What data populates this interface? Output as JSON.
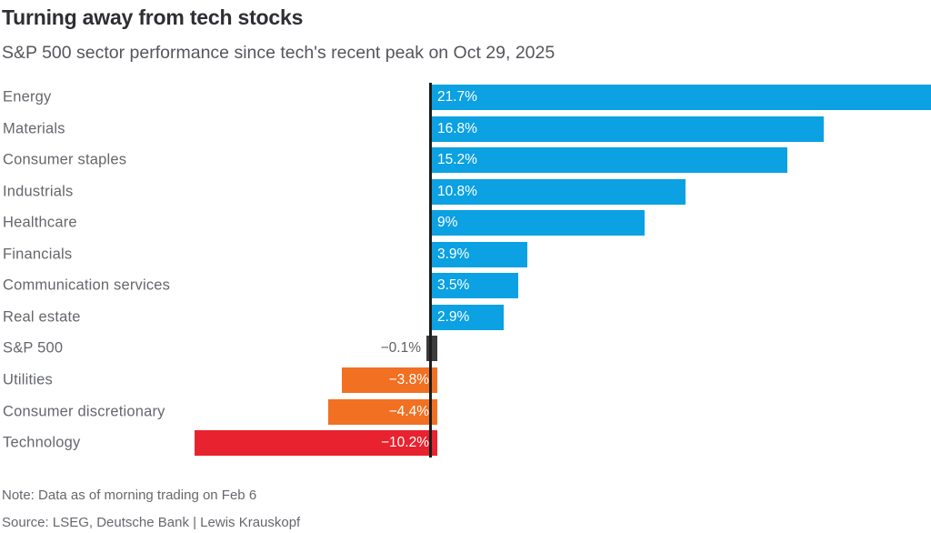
{
  "chart_data": {
    "type": "bar",
    "orientation": "horizontal",
    "title": "Turning away from tech stocks",
    "subtitle": "S&P 500 sector performance since tech's recent peak on Oct 29, 2025",
    "categories": [
      "Energy",
      "Materials",
      "Consumer staples",
      "Industrials",
      "Healthcare",
      "Financials",
      "Communication services",
      "Real estate",
      "S&P 500",
      "Utilities",
      "Consumer discretionary",
      "Technology"
    ],
    "values": [
      21.7,
      16.8,
      15.2,
      10.8,
      9,
      3.9,
      3.5,
      2.9,
      -0.1,
      -3.8,
      -4.4,
      -10.2
    ],
    "value_labels": [
      "21.7%",
      "16.8%",
      "15.2%",
      "10.8%",
      "9%",
      "3.9%",
      "3.5%",
      "2.9%",
      "−0.1%",
      "−3.8%",
      "−4.4%",
      "−10.2%"
    ],
    "bar_color_keys": [
      "positive",
      "positive",
      "positive",
      "positive",
      "positive",
      "positive",
      "positive",
      "positive",
      "benchmark",
      "negative",
      "negative",
      "worst"
    ],
    "label_positions": [
      "inside",
      "inside",
      "inside",
      "inside",
      "inside",
      "inside",
      "inside",
      "inside",
      "outside",
      "inside",
      "inside",
      "inside"
    ],
    "unit": "%",
    "xlim": [
      -10.2,
      21.8
    ],
    "grid": "off",
    "legend": "none",
    "note": "Note: Data as of morning trading on Feb 6",
    "source": "Source: LSEG, Deutsche Bank  | Lewis Krauskopf"
  },
  "colors": {
    "positive": "#0ba1e2",
    "negative": "#f17022",
    "worst": "#e8222e",
    "benchmark": "#3c3c3c",
    "axis": "#1c1c1c",
    "inside_label": "#ffffff",
    "outside_label": "#5d5f63"
  }
}
